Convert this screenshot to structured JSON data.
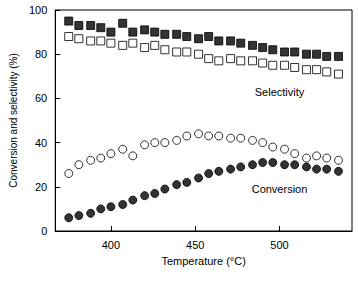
{
  "chart_data": {
    "type": "scatter",
    "x_label": "Temperature (°C)",
    "y_label": "Conversion and selectivity (%)",
    "xlim": [
      367,
      543
    ],
    "xticks": [
      400,
      450,
      500
    ],
    "ylim": [
      0,
      100
    ],
    "yticks": [
      0,
      20,
      40,
      60,
      80,
      100
    ],
    "grid": false,
    "x": [
      375,
      381,
      388,
      394,
      400,
      407,
      413,
      420,
      426,
      432,
      439,
      445,
      452,
      458,
      464,
      471,
      477,
      484,
      490,
      496,
      503,
      509,
      516,
      522,
      528,
      535
    ],
    "series": [
      {
        "color": "#000000",
        "marker": "square",
        "values": [
          95,
          93,
          93,
          92,
          90,
          94,
          90,
          91,
          90,
          89,
          89,
          88,
          87,
          88,
          86,
          86,
          85,
          84,
          83,
          82,
          81,
          81,
          80,
          80,
          79,
          79
        ]
      },
      {
        "color": "#000000",
        "marker": "square-open",
        "values": [
          88,
          87,
          86,
          86,
          85,
          84,
          85,
          83,
          84,
          82,
          81,
          81,
          80,
          78,
          77,
          78,
          77,
          77,
          76,
          75,
          75,
          74,
          73,
          73,
          72,
          71
        ]
      },
      {
        "color": "#000000",
        "marker": "circle-open",
        "values": [
          26,
          30,
          32,
          33,
          35,
          37,
          34,
          39,
          40,
          40,
          41,
          43,
          44,
          43,
          43,
          42,
          42,
          41,
          40,
          38,
          37,
          35,
          33,
          34,
          33,
          32
        ]
      },
      {
        "color": "#000000",
        "marker": "circle",
        "values": [
          6,
          7,
          8,
          10,
          11,
          12,
          14,
          16,
          17,
          19,
          21,
          22,
          24,
          26,
          27,
          28,
          29,
          30,
          31,
          31,
          30,
          30,
          29,
          28,
          28,
          27
        ]
      }
    ],
    "annotations": [
      {
        "text": "Selectivity",
        "x": 500,
        "y": 63
      },
      {
        "text": "Conversion",
        "x": 500,
        "y": 19
      }
    ]
  }
}
